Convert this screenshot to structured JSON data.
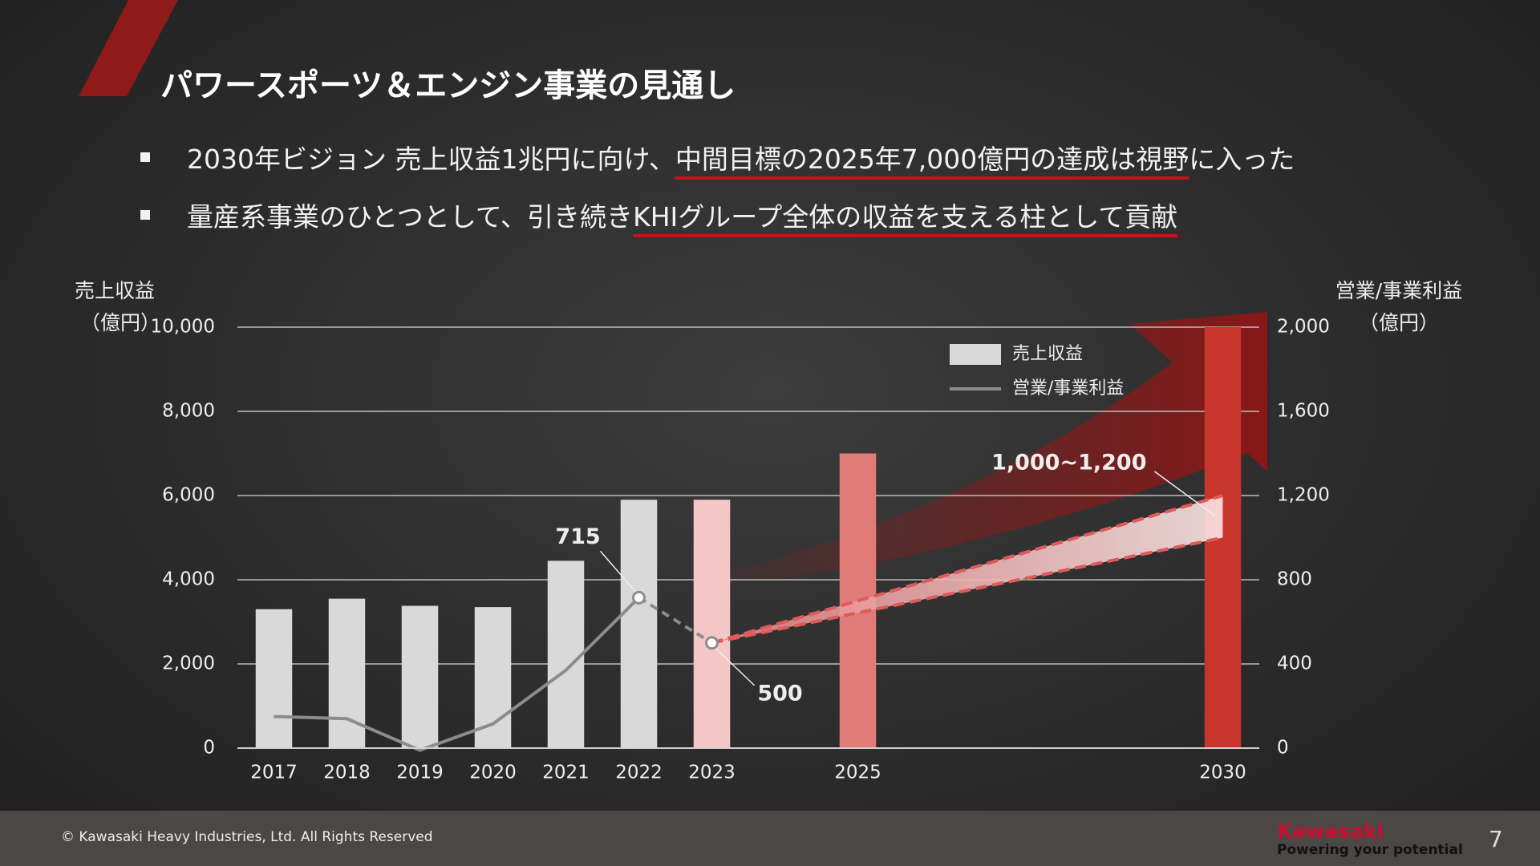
{
  "header": {
    "title": "パワースポーツ＆エンジン事業の見通し"
  },
  "bullets": [
    {
      "parts": [
        {
          "text": "2030年ビジョン 売上収益1兆円に向け、",
          "underline": false
        },
        {
          "text": "中間目標の2025年7,000億円の達成は視野",
          "underline": true
        },
        {
          "text": "に入った",
          "underline": false
        }
      ]
    },
    {
      "parts": [
        {
          "text": "量産系事業のひとつとして、引き続き",
          "underline": false
        },
        {
          "text": "KHIグループ全体の収益を支える柱として貢献",
          "underline": true
        }
      ]
    }
  ],
  "chart_data": {
    "type": "combo",
    "y_label": [
      "売上収益",
      "（億円）"
    ],
    "y2_label": [
      "営業/事業利益",
      "（億円）"
    ],
    "x": [
      2017,
      2018,
      2019,
      2020,
      2021,
      2022,
      2023,
      2025,
      2030
    ],
    "xlim": [
      2016.5,
      2030.5
    ],
    "xticks": [
      2017,
      2018,
      2019,
      2020,
      2021,
      2022,
      2023,
      2025,
      2030
    ],
    "ylim": [
      0,
      10000
    ],
    "yticks": [
      0,
      {
        "value": 2000,
        "label": "2,000"
      },
      {
        "value": 4000,
        "label": "4,000"
      },
      {
        "value": 6000,
        "label": "6,000"
      },
      {
        "value": 8000,
        "label": "8,000"
      },
      {
        "value": 10000,
        "label": "10,000"
      }
    ],
    "y2lim": [
      0,
      2000
    ],
    "y2ticks": [
      0,
      400,
      800,
      {
        "value": 1200,
        "label": "1,200"
      },
      {
        "value": 1600,
        "label": "1,600"
      },
      {
        "value": 2000,
        "label": "2,000"
      }
    ],
    "grid": true,
    "legend": "top-right",
    "series": [
      {
        "name": "売上収益",
        "type": "bar",
        "color": "#d9d9d9",
        "colors": [
          "#d9d9d9",
          "#d9d9d9",
          "#d9d9d9",
          "#d9d9d9",
          "#d9d9d9",
          "#d9d9d9",
          "#f4c7c7",
          "#e07b78",
          "#c8352d"
        ],
        "values": [
          3300,
          3550,
          3380,
          3350,
          4450,
          5900,
          5900,
          7000,
          10000
        ]
      },
      {
        "name": "営業/事業利益",
        "type": "line",
        "axis": "y2",
        "color": "#8c8c8c",
        "x": [
          2017,
          2018,
          2019,
          2020,
          2021,
          2022,
          2023
        ],
        "values": [
          150,
          140,
          -10,
          115,
          370,
          715,
          500
        ],
        "dashed_segments": 1
      }
    ],
    "band": {
      "label": "1,000~1,200",
      "axis": "y2",
      "color": "#e05a5a",
      "x": [
        2023,
        2030
      ],
      "low": [
        500,
        1000
      ],
      "high": [
        500,
        1200
      ]
    }
  },
  "footer": {
    "copyright": "© Kawasaki Heavy Industries, Ltd. All Rights Reserved",
    "logo": "Kawasaki",
    "tagline": "Powering your potential",
    "page": "7"
  }
}
